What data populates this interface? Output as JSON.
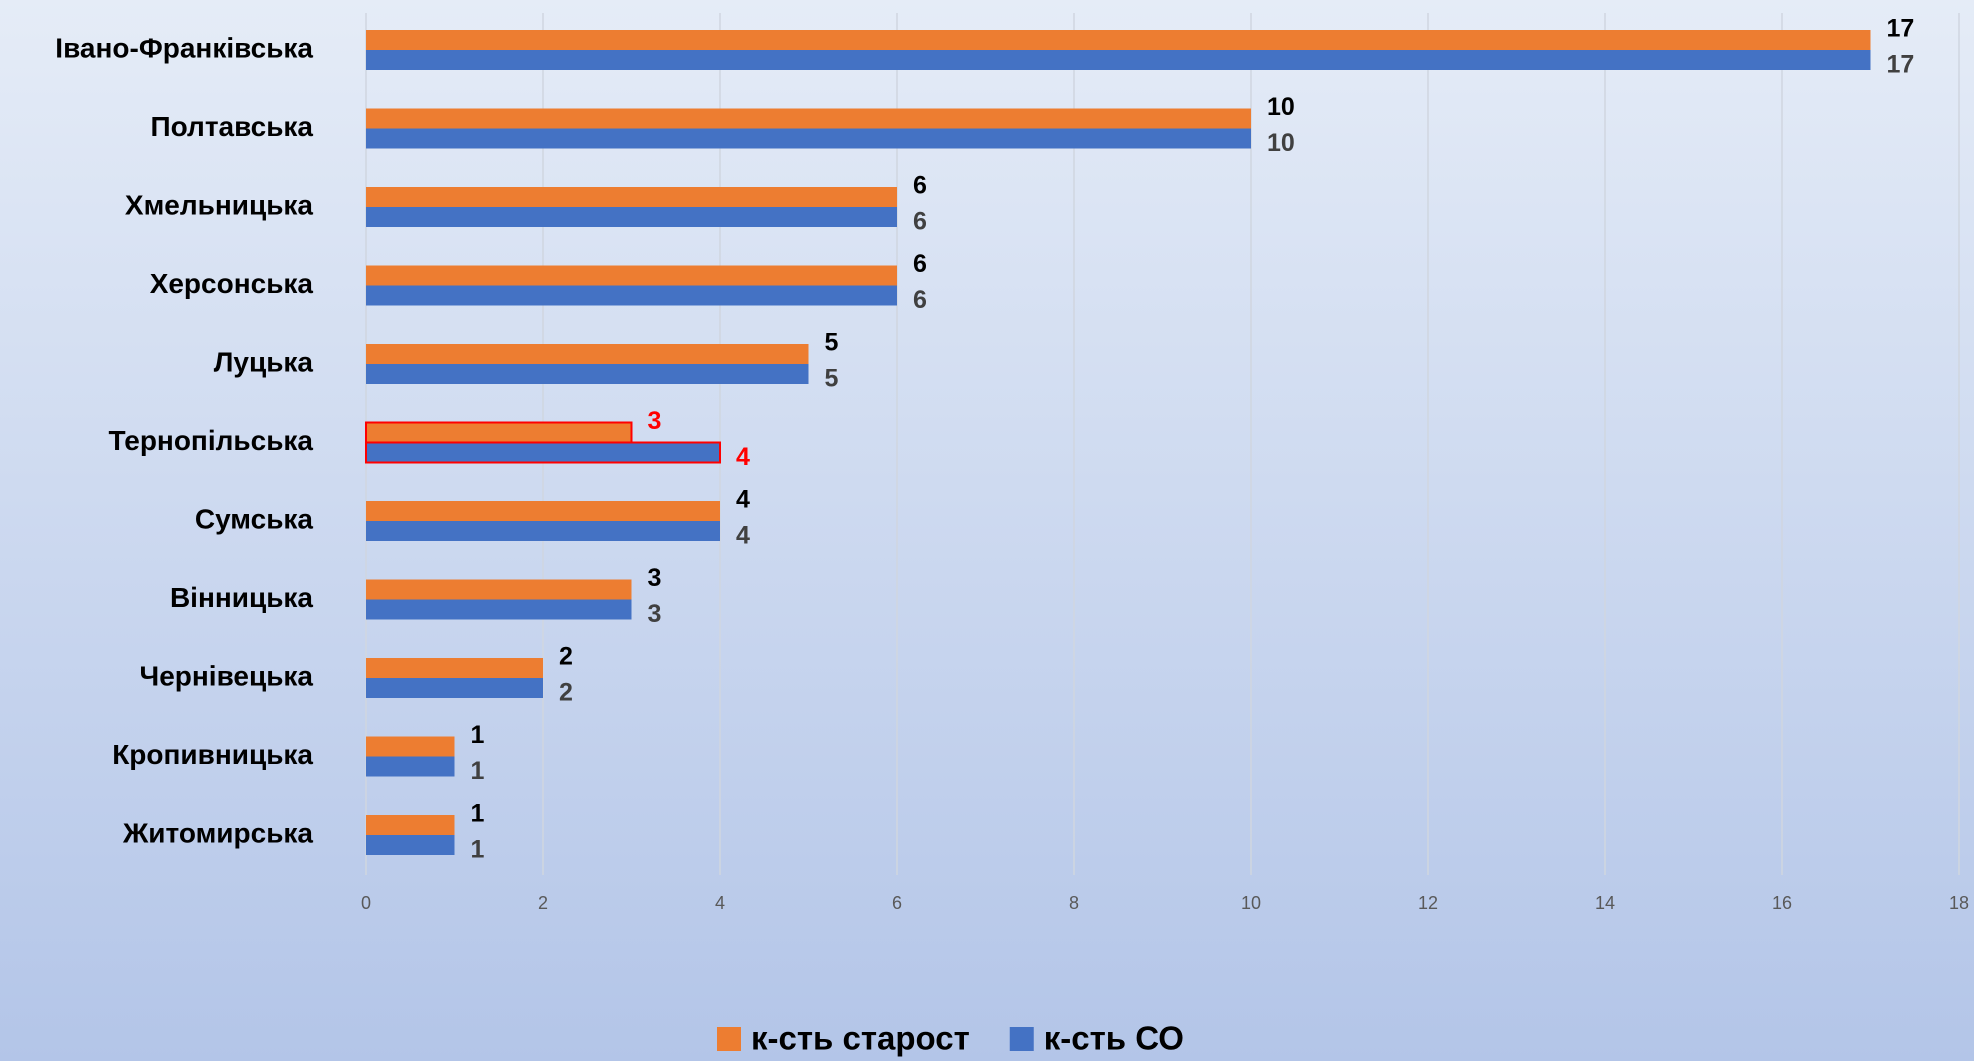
{
  "chart_data": {
    "type": "hbar",
    "categories": [
      "Івано-Франківська",
      "Полтавська",
      "Хмельницька",
      "Херсонська",
      "Луцька",
      "Тернопільська",
      "Сумська",
      "Вінницька",
      "Чернівецька",
      "Кропивницька",
      "Житомирська"
    ],
    "series": [
      {
        "name": "к-сть старост",
        "color": "#ed7d31",
        "label_color": "#000000",
        "values": [
          17,
          10,
          6,
          6,
          5,
          3,
          4,
          3,
          2,
          1,
          1
        ]
      },
      {
        "name": "к-сть СО",
        "color": "#4472c4",
        "label_color": "#404040",
        "values": [
          17,
          10,
          6,
          6,
          5,
          4,
          4,
          3,
          2,
          1,
          1
        ]
      }
    ],
    "xlim": [
      0,
      18
    ],
    "xticks": [
      0,
      2,
      4,
      6,
      8,
      10,
      12,
      14,
      16,
      18
    ],
    "grid": true,
    "legend": "bottom",
    "highlight_category": 5,
    "highlight_color": "#ff0000"
  }
}
